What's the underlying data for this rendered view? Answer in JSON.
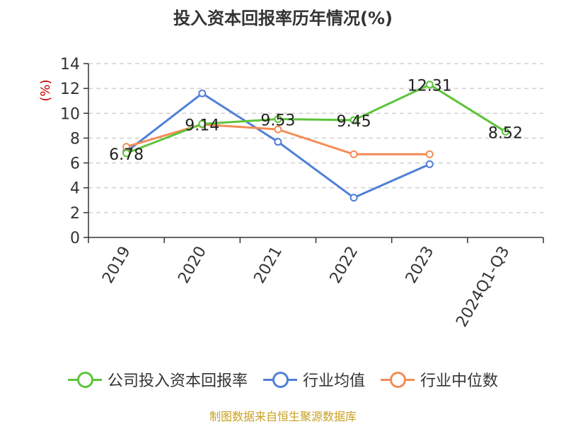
{
  "chart_data": {
    "type": "line",
    "title": "投入资本回报率历年情况(%)",
    "ylabel": "(%)",
    "categories": [
      "2019",
      "2020",
      "2021",
      "2022",
      "2023",
      "2024Q1-Q3"
    ],
    "ylim": [
      0,
      14
    ],
    "yticks": [
      "0",
      "2",
      "4",
      "6",
      "8",
      "10",
      "12",
      "14"
    ],
    "grid": true,
    "legend_position": "bottom",
    "series": [
      {
        "name": "公司投入资本回报率",
        "color": "#5dc43a",
        "values": [
          6.78,
          9.14,
          9.53,
          9.45,
          12.31,
          8.52
        ],
        "labels": [
          "6.78",
          "9.14",
          "9.53",
          "9.45",
          "12.31",
          "8.52"
        ]
      },
      {
        "name": "行业均值",
        "color": "#4f7fd8",
        "values": [
          6.9,
          11.6,
          7.7,
          3.2,
          5.9,
          null
        ]
      },
      {
        "name": "行业中位数",
        "color": "#f48c55",
        "values": [
          7.3,
          9.1,
          8.7,
          6.7,
          6.7,
          null
        ]
      }
    ]
  },
  "source_text": "制图数据来自恒生聚源数据库",
  "colors": {
    "axis": "#333333",
    "grid": "#bbbbbb",
    "ylabel": "#cc0000",
    "source": "#c8a020"
  }
}
